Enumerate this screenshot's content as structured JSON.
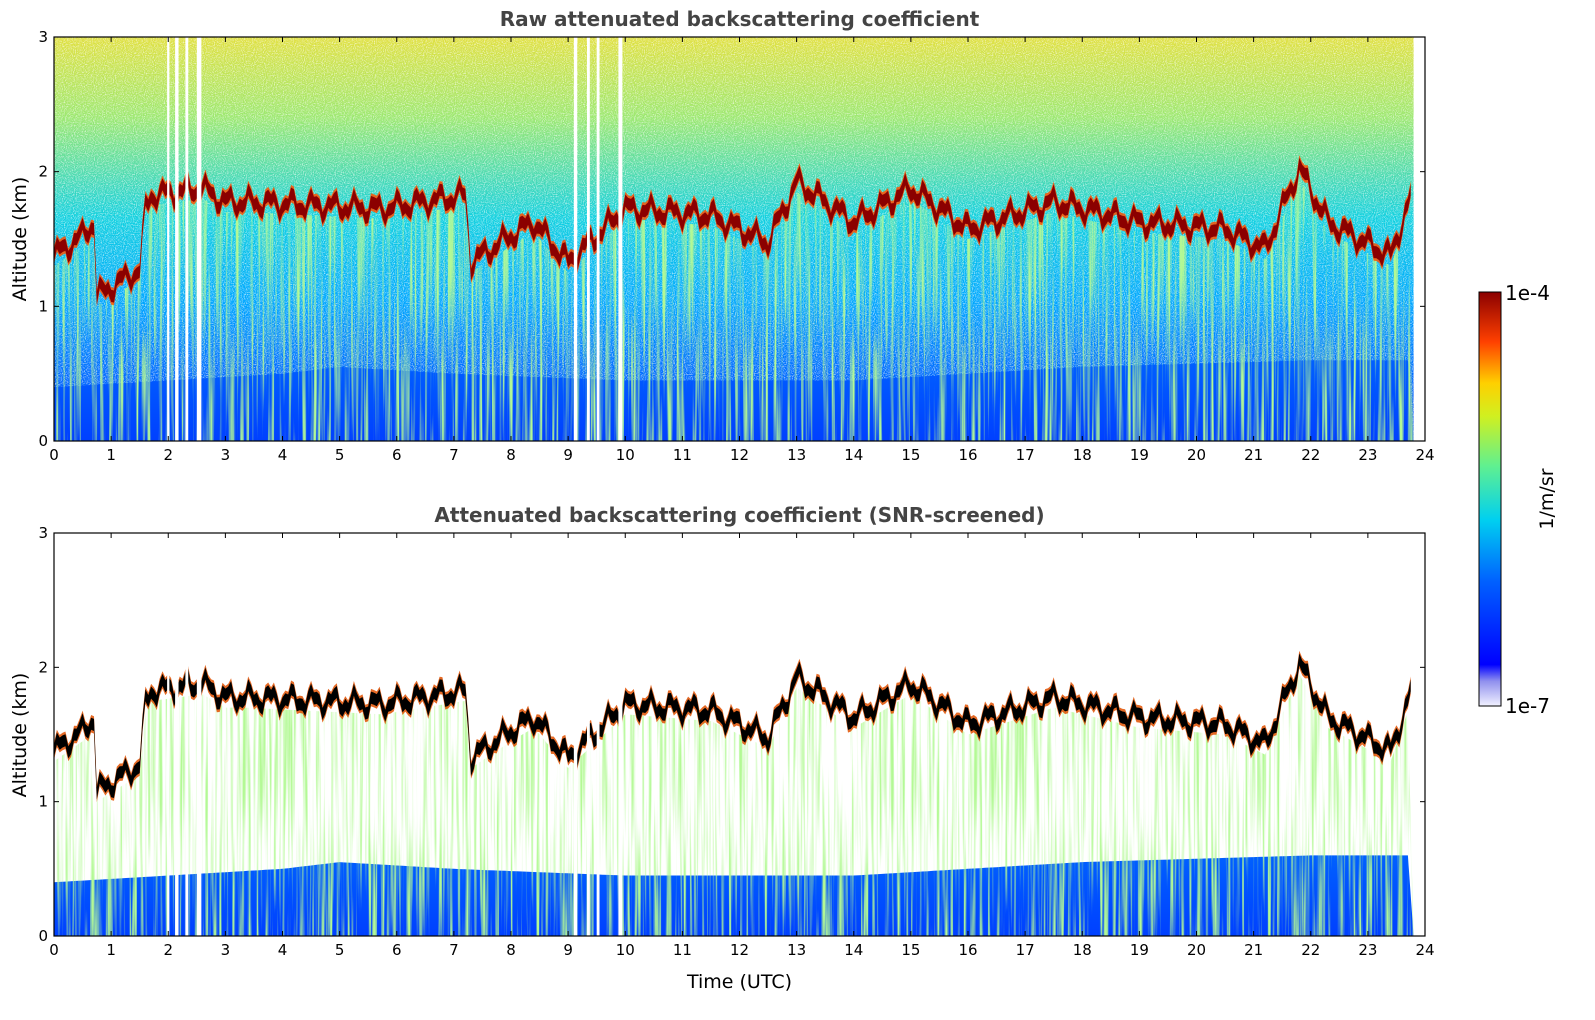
{
  "chart_data": [
    {
      "type": "heatmap",
      "title": "Raw attenuated backscattering coefficient",
      "xlabel": "",
      "ylabel": "Altitude (km)",
      "xlim": [
        0,
        24
      ],
      "ylim": [
        0,
        3
      ],
      "xticks": [
        "0",
        "1",
        "2",
        "3",
        "4",
        "5",
        "6",
        "7",
        "8",
        "9",
        "10",
        "11",
        "12",
        "13",
        "14",
        "15",
        "16",
        "17",
        "18",
        "19",
        "20",
        "21",
        "22",
        "23",
        "24"
      ],
      "yticks": [
        "0",
        "1",
        "2",
        "3"
      ],
      "data_gaps_hours": [
        [
          1.98,
          2.02
        ],
        [
          2.12,
          2.18
        ],
        [
          2.3,
          2.35
        ],
        [
          2.5,
          2.58
        ],
        [
          9.1,
          9.16
        ],
        [
          9.33,
          9.38
        ],
        [
          9.5,
          9.55
        ],
        [
          9.88,
          9.95
        ],
        [
          23.8,
          24.0
        ]
      ],
      "cloud_base_km": {
        "x": [
          0,
          0.5,
          0.7,
          0.75,
          1.5,
          1.6,
          1.7,
          2.6,
          3.0,
          3.35,
          5.75,
          7.2,
          7.3,
          8.0,
          8.4,
          9.0,
          10.0,
          11.5,
          12.5,
          13.0,
          14.0,
          15.0,
          16.0,
          17.5,
          19.0,
          20.5,
          21.2,
          21.8,
          22.3,
          23.4,
          23.8
        ],
        "y": [
          1.35,
          1.5,
          1.6,
          1.05,
          1.25,
          1.7,
          1.8,
          1.85,
          1.75,
          1.75,
          1.7,
          1.8,
          1.3,
          1.5,
          1.6,
          1.3,
          1.7,
          1.65,
          1.45,
          1.9,
          1.6,
          1.85,
          1.55,
          1.75,
          1.6,
          1.55,
          1.4,
          2.0,
          1.6,
          1.35,
          1.85
        ]
      },
      "aerosol_layer_top_km": {
        "x": [
          0,
          2,
          4,
          5,
          7,
          10,
          14,
          18,
          22,
          24
        ],
        "y": [
          0.4,
          0.45,
          0.5,
          0.55,
          0.5,
          0.45,
          0.45,
          0.55,
          0.6,
          0.6
        ]
      }
    },
    {
      "type": "heatmap",
      "title": "Attenuated backscattering coefficient (SNR-screened)",
      "xlabel": "Time (UTC)",
      "ylabel": "Altitude (km)",
      "xlim": [
        0,
        24
      ],
      "ylim": [
        0,
        3
      ],
      "xticks": [
        "0",
        "1",
        "2",
        "3",
        "4",
        "5",
        "6",
        "7",
        "8",
        "9",
        "10",
        "11",
        "12",
        "13",
        "14",
        "15",
        "16",
        "17",
        "18",
        "19",
        "20",
        "21",
        "22",
        "23",
        "24"
      ],
      "yticks": [
        "0",
        "1",
        "2",
        "3"
      ]
    }
  ],
  "colorbar": {
    "label": "1/m/sr",
    "max_label": "1e-4",
    "min_label": "1e-7",
    "colors": [
      "#f2f2ff",
      "#c8c8f5",
      "#9090ee",
      "#0000ff",
      "#0050ff",
      "#00a0ff",
      "#00e0e8",
      "#40f0b0",
      "#a0f050",
      "#f0f000",
      "#ffa000",
      "#ff3000",
      "#d00000",
      "#8b0000"
    ]
  }
}
